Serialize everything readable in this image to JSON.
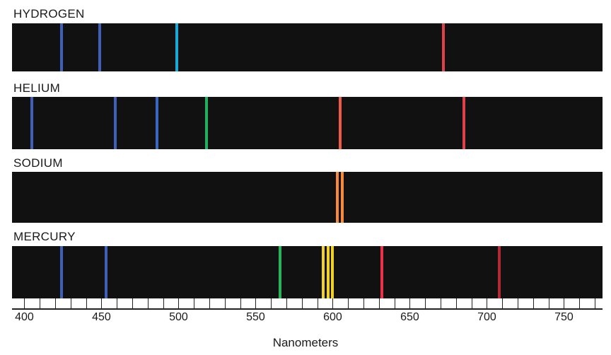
{
  "spectra": [
    {
      "label": "HYDROGEN",
      "lines": [
        {
          "nm": 424,
          "color": "#3f5fb8"
        },
        {
          "nm": 449,
          "color": "#3f5fb8"
        },
        {
          "nm": 499,
          "color": "#19a8d8"
        },
        {
          "nm": 672,
          "color": "#e0404a"
        }
      ]
    },
    {
      "label": "HELIUM",
      "lines": [
        {
          "nm": 405,
          "color": "#3f5fb8"
        },
        {
          "nm": 459,
          "color": "#3f5fb8"
        },
        {
          "nm": 486,
          "color": "#3a68c0"
        },
        {
          "nm": 518,
          "color": "#1fb060"
        },
        {
          "nm": 605,
          "color": "#f05a44"
        },
        {
          "nm": 685,
          "color": "#e0404a"
        }
      ]
    },
    {
      "label": "SODIUM",
      "lines": [
        {
          "nm": 603,
          "color": "#f78a3c"
        },
        {
          "nm": 606,
          "color": "#f78a3c"
        }
      ]
    },
    {
      "label": "MERCURY",
      "lines": [
        {
          "nm": 424,
          "color": "#3f5fb8"
        },
        {
          "nm": 453,
          "color": "#3f5fb8"
        },
        {
          "nm": 566,
          "color": "#29b35a"
        },
        {
          "nm": 594,
          "color": "#f2d02a"
        },
        {
          "nm": 597,
          "color": "#f2d02a"
        },
        {
          "nm": 600,
          "color": "#f2d02a"
        },
        {
          "nm": 632,
          "color": "#e8334a"
        },
        {
          "nm": 708,
          "color": "#b32a34"
        }
      ]
    }
  ],
  "axis": {
    "title": "Nanometers",
    "ticks": [
      "400",
      "450",
      "500",
      "550",
      "600",
      "650",
      "700",
      "750"
    ],
    "range": [
      392,
      775
    ]
  }
}
